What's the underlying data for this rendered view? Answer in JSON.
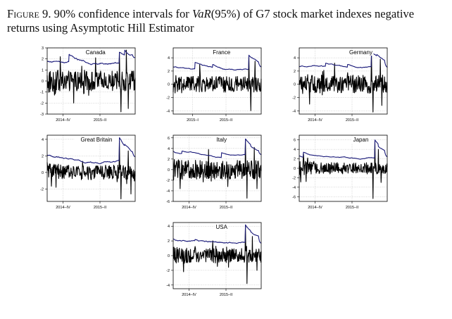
{
  "caption": {
    "figure_label": "Figure 9.",
    "text_before": "90% confidence intervals for",
    "var_symbol": "VaR",
    "var_level": "(95%)",
    "text_after": "of G7 stock market indexes negative returns using Asymptotic Hill Estimator"
  },
  "colors": {
    "returns_line": "#000000",
    "var_line": "#1a1a7a",
    "grid": "#b0b0b0",
    "axis": "#000000"
  },
  "chart_data": [
    {
      "type": "line",
      "title": "Canada",
      "ylim": [
        -3,
        3
      ],
      "yticks": [
        -3,
        -2,
        -1,
        0,
        1,
        2,
        3
      ],
      "xlim": [
        0,
        1
      ],
      "xticks": [
        {
          "pos": 0.18,
          "label": "2014–IV"
        },
        {
          "pos": 0.6,
          "label": "2015–II"
        }
      ],
      "grid": true,
      "returns": {
        "level": 0.0,
        "amplitude": 0.9,
        "start_amp": 1.2,
        "spikes": [
          [
            0.15,
            2.2
          ],
          [
            0.55,
            2.1
          ],
          [
            0.82,
            2.6
          ],
          [
            0.84,
            -2.8
          ],
          [
            0.9,
            2.8
          ],
          [
            0.92,
            -2.5
          ],
          [
            0.3,
            -2.0
          ]
        ]
      },
      "var_band": {
        "start": 1.8,
        "base": 1.5,
        "trend": 0.15,
        "jumps": [
          [
            0.25,
            2.4
          ],
          [
            0.5,
            2.0
          ],
          [
            0.82,
            2.6
          ],
          [
            0.88,
            3.0
          ]
        ],
        "end": 2.1
      }
    },
    {
      "type": "line",
      "title": "France",
      "ylim": [
        -4.5,
        5.5
      ],
      "yticks": [
        -4,
        -2,
        0,
        2,
        4
      ],
      "xlim": [
        0,
        1
      ],
      "xticks": [
        {
          "pos": 0.22,
          "label": "2015–I"
        },
        {
          "pos": 0.6,
          "label": "2015–II"
        }
      ],
      "grid": true,
      "returns": {
        "level": 0.0,
        "amplitude": 1.2,
        "start_amp": 1.5,
        "spikes": [
          [
            0.3,
            3.0
          ],
          [
            0.5,
            -3.0
          ],
          [
            0.86,
            4.2
          ],
          [
            0.88,
            -4.0
          ],
          [
            0.93,
            3.5
          ]
        ]
      },
      "var_band": {
        "start": 2.6,
        "base": 2.2,
        "trend": 0.3,
        "jumps": [
          [
            0.25,
            3.3
          ],
          [
            0.45,
            3.0
          ],
          [
            0.86,
            4.4
          ],
          [
            0.9,
            4.0
          ]
        ],
        "end": 2.6
      }
    },
    {
      "type": "line",
      "title": "Germany",
      "ylim": [
        -4.5,
        5.5
      ],
      "yticks": [
        -4,
        -2,
        0,
        2,
        4
      ],
      "xlim": [
        0,
        1
      ],
      "xticks": [
        {
          "pos": 0.18,
          "label": "2014–IV"
        },
        {
          "pos": 0.6,
          "label": "2015–II"
        }
      ],
      "grid": true,
      "returns": {
        "level": 0.0,
        "amplitude": 1.4,
        "start_amp": 1.6,
        "spikes": [
          [
            0.12,
            -3.0
          ],
          [
            0.4,
            3.2
          ],
          [
            0.82,
            4.8
          ],
          [
            0.84,
            -4.2
          ],
          [
            0.92,
            3.8
          ],
          [
            0.94,
            -3.2
          ]
        ]
      },
      "var_band": {
        "start": 2.7,
        "base": 2.5,
        "trend": 0.3,
        "jumps": [
          [
            0.3,
            3.2
          ],
          [
            0.55,
            3.0
          ],
          [
            0.82,
            4.9
          ],
          [
            0.88,
            4.5
          ]
        ],
        "end": 2.5
      }
    },
    {
      "type": "line",
      "title": "Great Britain",
      "ylim": [
        -3.5,
        4.5
      ],
      "yticks": [
        -2,
        0,
        2,
        4
      ],
      "xlim": [
        0,
        1
      ],
      "xticks": [
        {
          "pos": 0.18,
          "label": "2014–IV"
        },
        {
          "pos": 0.6,
          "label": "2015–II"
        }
      ],
      "grid": true,
      "returns": {
        "level": 0.0,
        "amplitude": 0.9,
        "start_amp": 1.1,
        "spikes": [
          [
            0.1,
            -1.8
          ],
          [
            0.5,
            1.8
          ],
          [
            0.82,
            3.8
          ],
          [
            0.84,
            -3.2
          ],
          [
            0.92,
            2.6
          ],
          [
            0.95,
            -2.6
          ]
        ]
      },
      "var_band": {
        "start": 2.1,
        "base": 1.3,
        "trend": 0.2,
        "jumps": [
          [
            0.1,
            1.9
          ],
          [
            0.82,
            4.2
          ],
          [
            0.88,
            3.4
          ]
        ],
        "end": 1.9
      }
    },
    {
      "type": "line",
      "title": "Italy",
      "ylim": [
        -6,
        6.5
      ],
      "yticks": [
        -6,
        -4,
        -2,
        0,
        2,
        4,
        6
      ],
      "xlim": [
        0,
        1
      ],
      "xticks": [
        {
          "pos": 0.18,
          "label": "2014–IV"
        },
        {
          "pos": 0.6,
          "label": "2015–II"
        }
      ],
      "grid": true,
      "returns": {
        "level": 0.0,
        "amplitude": 1.8,
        "start_amp": 2.0,
        "spikes": [
          [
            0.08,
            -3.6
          ],
          [
            0.4,
            3.8
          ],
          [
            0.62,
            -3.2
          ],
          [
            0.82,
            5.6
          ],
          [
            0.84,
            -5.4
          ],
          [
            0.92,
            4.2
          ],
          [
            0.95,
            -3.6
          ]
        ]
      },
      "var_band": {
        "start": 3.5,
        "base": 2.4,
        "trend": 0.3,
        "jumps": [
          [
            0.1,
            3.5
          ],
          [
            0.55,
            3.2
          ],
          [
            0.82,
            5.8
          ],
          [
            0.88,
            4.4
          ]
        ],
        "end": 2.8
      }
    },
    {
      "type": "line",
      "title": "Japan",
      "ylim": [
        -7,
        7
      ],
      "yticks": [
        -6,
        -4,
        -2,
        0,
        2,
        4,
        6
      ],
      "xlim": [
        0,
        1
      ],
      "xticks": [
        {
          "pos": 0.18,
          "label": "2014–IV"
        },
        {
          "pos": 0.6,
          "label": "2015–II"
        }
      ],
      "grid": true,
      "returns": {
        "level": 0.0,
        "amplitude": 1.2,
        "start_amp": 2.0,
        "spikes": [
          [
            0.05,
            3.2
          ],
          [
            0.08,
            -2.8
          ],
          [
            0.84,
            -6.4
          ],
          [
            0.86,
            5.6
          ],
          [
            0.9,
            4.0
          ],
          [
            0.93,
            -3.0
          ]
        ]
      },
      "var_band": {
        "start": 2.6,
        "base": 2.2,
        "trend": 0.1,
        "jumps": [
          [
            0.05,
            3.4
          ],
          [
            0.86,
            6.0
          ],
          [
            0.9,
            4.6
          ]
        ],
        "end": 2.4
      }
    },
    {
      "type": "line",
      "title": "USA",
      "ylim": [
        -4.5,
        4.5
      ],
      "yticks": [
        -4,
        -2,
        0,
        2,
        4
      ],
      "xlim": [
        0,
        1
      ],
      "xticks": [
        {
          "pos": 0.18,
          "label": "2014–IV"
        },
        {
          "pos": 0.6,
          "label": "2015–II"
        }
      ],
      "grid": true,
      "returns": {
        "level": 0.0,
        "amplitude": 1.0,
        "start_amp": 1.2,
        "spikes": [
          [
            0.12,
            -2.2
          ],
          [
            0.45,
            2.0
          ],
          [
            0.82,
            4.0
          ],
          [
            0.84,
            -3.8
          ],
          [
            0.9,
            2.6
          ],
          [
            0.95,
            -2.0
          ]
        ]
      },
      "var_band": {
        "start": 2.3,
        "base": 1.8,
        "trend": 0.1,
        "jumps": [
          [
            0.25,
            2.2
          ],
          [
            0.5,
            2.0
          ],
          [
            0.82,
            4.2
          ],
          [
            0.88,
            3.2
          ]
        ],
        "end": 1.6
      }
    }
  ]
}
